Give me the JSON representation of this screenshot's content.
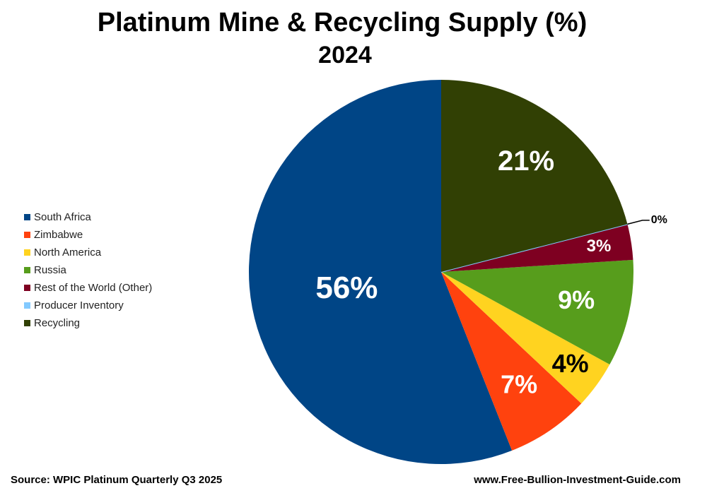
{
  "chart_data": {
    "type": "pie",
    "title": "Platinum Mine & Recycling Supply (%)",
    "subtitle": "2024",
    "categories": [
      "South Africa",
      "Zimbabwe",
      "North America",
      "Russia",
      "Rest of the World (Other)",
      "Producer Inventory",
      "Recycling"
    ],
    "values": [
      56,
      7,
      4,
      9,
      3,
      0,
      21
    ],
    "value_labels": [
      "56%",
      "7%",
      "4%",
      "9%",
      "3%",
      "0%",
      "21%"
    ],
    "colors": [
      "#004586",
      "#ff420e",
      "#ffd320",
      "#579d1c",
      "#7e0021",
      "#83caff",
      "#314004"
    ],
    "legend": "left",
    "source": "Source: WPIC Platinum Quarterly Q3 2025",
    "website": "www.Free-Bullion-Investment-Guide.com"
  }
}
